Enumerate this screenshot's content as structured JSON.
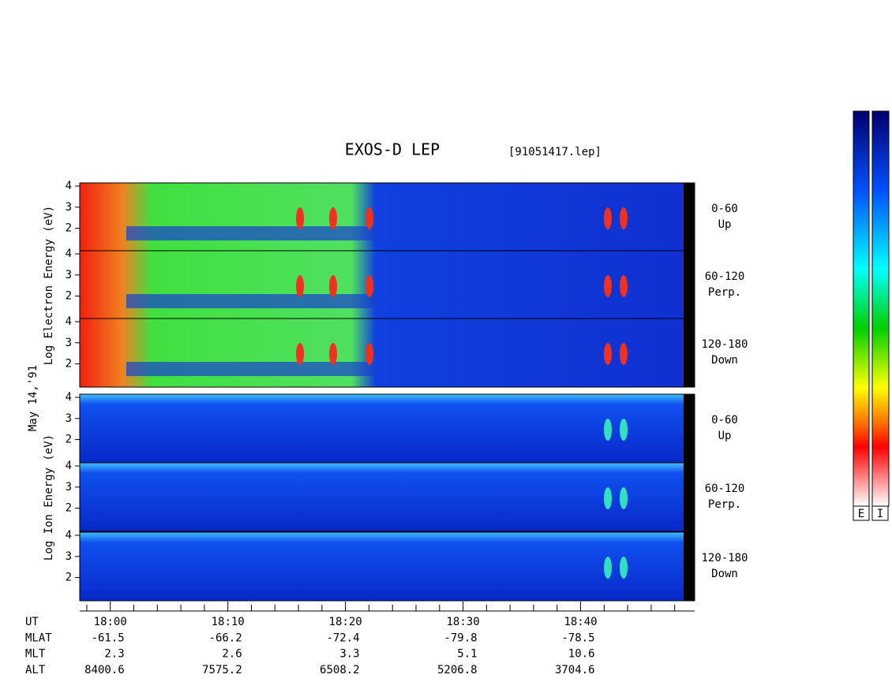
{
  "title": "EXOS-D LEP",
  "file_label": "[91051417.lep]",
  "date_label": "May 14,'91",
  "chart_data": {
    "type": "spectrogram",
    "xlim": [
      1077.4,
      1129.7
    ],
    "xticks": [
      {
        "value": 1080,
        "label": "18:00"
      },
      {
        "value": 1090,
        "label": "18:10"
      },
      {
        "value": 1100,
        "label": "18:20"
      },
      {
        "value": 1110,
        "label": "18:30"
      },
      {
        "value": 1120,
        "label": "18:40"
      }
    ],
    "xminorticks": [
      1078,
      1082,
      1084,
      1086,
      1088,
      1092,
      1094,
      1096,
      1098,
      1102,
      1104,
      1106,
      1108,
      1112,
      1114,
      1116,
      1118,
      1122,
      1124,
      1126,
      1128
    ],
    "ylim": [
      0.9,
      4.15
    ],
    "yticks": [
      2,
      3,
      4
    ],
    "groups": [
      {
        "axis_label": "Log Electron Energy (eV)",
        "panels": [
          {
            "label": "0-60",
            "sublabel": "Up"
          },
          {
            "label": "60-120",
            "sublabel": "Perp."
          },
          {
            "label": "120-180",
            "sublabel": "Down"
          }
        ]
      },
      {
        "axis_label": "Log Ion Energy (eV)",
        "panels": [
          {
            "label": "0-60",
            "sublabel": "Up"
          },
          {
            "label": "60-120",
            "sublabel": "Perp."
          },
          {
            "label": "120-180",
            "sublabel": "Down"
          }
        ]
      }
    ],
    "ephemeris": [
      {
        "label": "UT"
      },
      {
        "label": "MLAT",
        "values": [
          -61.5,
          -66.2,
          -72.4,
          -79.8,
          -78.5
        ]
      },
      {
        "label": "MLT",
        "values": [
          2.3,
          2.6,
          3.3,
          5.1,
          10.6
        ]
      },
      {
        "label": "ALT",
        "values": [
          8400.6,
          7575.2,
          6508.2,
          5206.8,
          3704.6
        ]
      }
    ],
    "colorbar_labels": [
      "E",
      "I"
    ]
  }
}
